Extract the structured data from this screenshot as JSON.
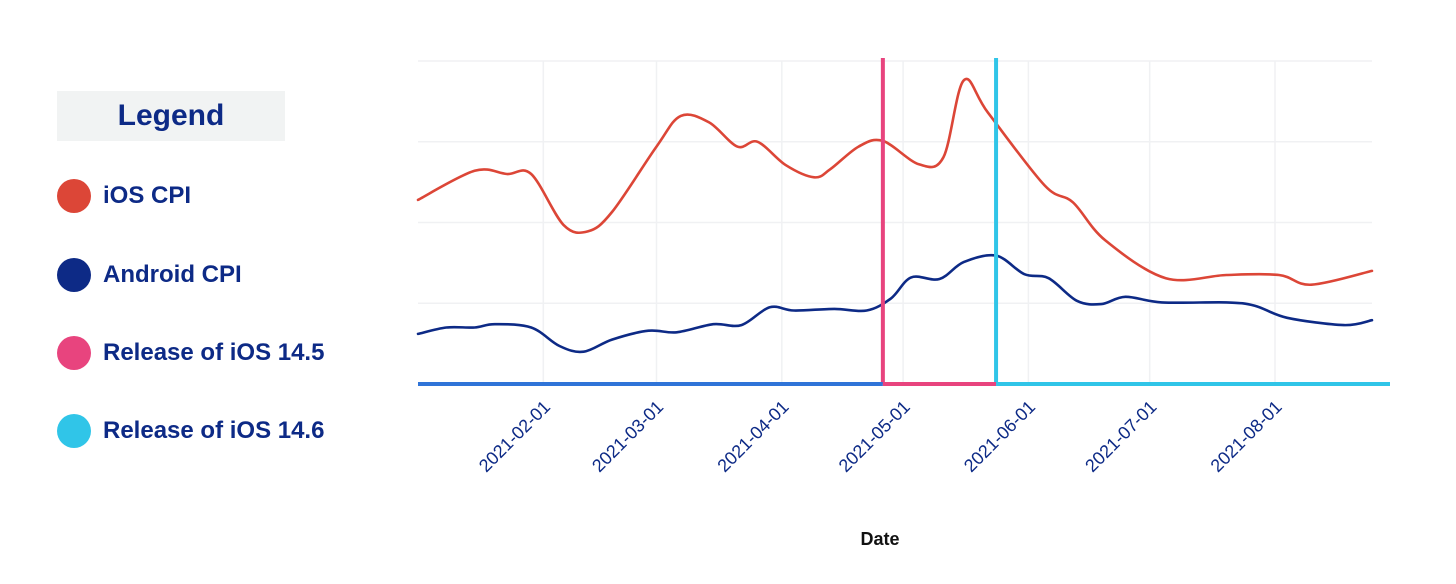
{
  "legend": {
    "title": "Legend",
    "items": [
      {
        "label": "iOS CPI",
        "color": "#dc4637"
      },
      {
        "label": "Android CPI",
        "color": "#0d2a86"
      },
      {
        "label": "Release of iOS 14.5",
        "color": "#e8447e"
      },
      {
        "label": "Release of iOS 14.6",
        "color": "#30c5e8"
      }
    ]
  },
  "chart_data": {
    "type": "line",
    "xlabel": "Date",
    "ylabel": "",
    "x_axis": "date",
    "xlim": [
      "2021-01-01",
      "2021-08-25"
    ],
    "ylim": [
      0,
      4
    ],
    "y_tick_labels": "none",
    "grid": true,
    "x_ticks": [
      "2021-02-01",
      "2021-03-01",
      "2021-04-01",
      "2021-05-01",
      "2021-06-01",
      "2021-07-01",
      "2021-08-01"
    ],
    "series": [
      {
        "name": "iOS CPI",
        "color": "#dc4637",
        "points": [
          {
            "x": "2021-01-01",
            "y": 2.28
          },
          {
            "x": "2021-01-15",
            "y": 2.64
          },
          {
            "x": "2021-01-23",
            "y": 2.6
          },
          {
            "x": "2021-01-29",
            "y": 2.6
          },
          {
            "x": "2021-02-06",
            "y": 1.97
          },
          {
            "x": "2021-02-12",
            "y": 1.89
          },
          {
            "x": "2021-02-18",
            "y": 2.13
          },
          {
            "x": "2021-03-01",
            "y": 2.94
          },
          {
            "x": "2021-03-07",
            "y": 3.32
          },
          {
            "x": "2021-03-14",
            "y": 3.24
          },
          {
            "x": "2021-03-21",
            "y": 2.94
          },
          {
            "x": "2021-03-26",
            "y": 3.0
          },
          {
            "x": "2021-04-02",
            "y": 2.71
          },
          {
            "x": "2021-04-09",
            "y": 2.56
          },
          {
            "x": "2021-04-13",
            "y": 2.66
          },
          {
            "x": "2021-04-20",
            "y": 2.94
          },
          {
            "x": "2021-04-26",
            "y": 3.01
          },
          {
            "x": "2021-05-05",
            "y": 2.72
          },
          {
            "x": "2021-05-11",
            "y": 2.81
          },
          {
            "x": "2021-05-16",
            "y": 3.76
          },
          {
            "x": "2021-05-22",
            "y": 3.36
          },
          {
            "x": "2021-06-05",
            "y": 2.46
          },
          {
            "x": "2021-06-12",
            "y": 2.25
          },
          {
            "x": "2021-06-20",
            "y": 1.78
          },
          {
            "x": "2021-07-05",
            "y": 1.31
          },
          {
            "x": "2021-07-20",
            "y": 1.35
          },
          {
            "x": "2021-08-02",
            "y": 1.35
          },
          {
            "x": "2021-08-10",
            "y": 1.23
          },
          {
            "x": "2021-08-25",
            "y": 1.4
          }
        ]
      },
      {
        "name": "Android CPI",
        "color": "#0d2a86",
        "points": [
          {
            "x": "2021-01-01",
            "y": 0.62
          },
          {
            "x": "2021-01-08",
            "y": 0.7
          },
          {
            "x": "2021-01-15",
            "y": 0.7
          },
          {
            "x": "2021-01-20",
            "y": 0.74
          },
          {
            "x": "2021-01-29",
            "y": 0.7
          },
          {
            "x": "2021-02-05",
            "y": 0.47
          },
          {
            "x": "2021-02-11",
            "y": 0.4
          },
          {
            "x": "2021-02-18",
            "y": 0.55
          },
          {
            "x": "2021-02-27",
            "y": 0.66
          },
          {
            "x": "2021-03-06",
            "y": 0.64
          },
          {
            "x": "2021-03-15",
            "y": 0.74
          },
          {
            "x": "2021-03-22",
            "y": 0.73
          },
          {
            "x": "2021-03-29",
            "y": 0.95
          },
          {
            "x": "2021-04-04",
            "y": 0.91
          },
          {
            "x": "2021-04-14",
            "y": 0.93
          },
          {
            "x": "2021-04-22",
            "y": 0.91
          },
          {
            "x": "2021-04-28",
            "y": 1.06
          },
          {
            "x": "2021-05-03",
            "y": 1.32
          },
          {
            "x": "2021-05-10",
            "y": 1.3
          },
          {
            "x": "2021-05-16",
            "y": 1.51
          },
          {
            "x": "2021-05-24",
            "y": 1.59
          },
          {
            "x": "2021-05-31",
            "y": 1.36
          },
          {
            "x": "2021-06-06",
            "y": 1.31
          },
          {
            "x": "2021-06-13",
            "y": 1.03
          },
          {
            "x": "2021-06-19",
            "y": 0.99
          },
          {
            "x": "2021-06-25",
            "y": 1.08
          },
          {
            "x": "2021-07-04",
            "y": 1.01
          },
          {
            "x": "2021-07-20",
            "y": 1.01
          },
          {
            "x": "2021-07-27",
            "y": 0.97
          },
          {
            "x": "2021-08-04",
            "y": 0.82
          },
          {
            "x": "2021-08-18",
            "y": 0.73
          },
          {
            "x": "2021-08-25",
            "y": 0.79
          }
        ]
      }
    ],
    "vertical_markers": [
      {
        "name": "Release of iOS 14.5",
        "x": "2021-04-26",
        "color": "#e8447e"
      },
      {
        "name": "Release of iOS 14.6",
        "x": "2021-05-24",
        "color": "#30c5e8"
      }
    ],
    "baseline_segments": [
      {
        "from": "2021-01-01",
        "to": "2021-04-26",
        "color": "#2f74d8"
      },
      {
        "from": "2021-04-26",
        "to": "2021-05-24",
        "color": "#e8447e"
      },
      {
        "from": "2021-05-24",
        "to": "2021-08-25",
        "color": "#30c5e8"
      }
    ]
  }
}
